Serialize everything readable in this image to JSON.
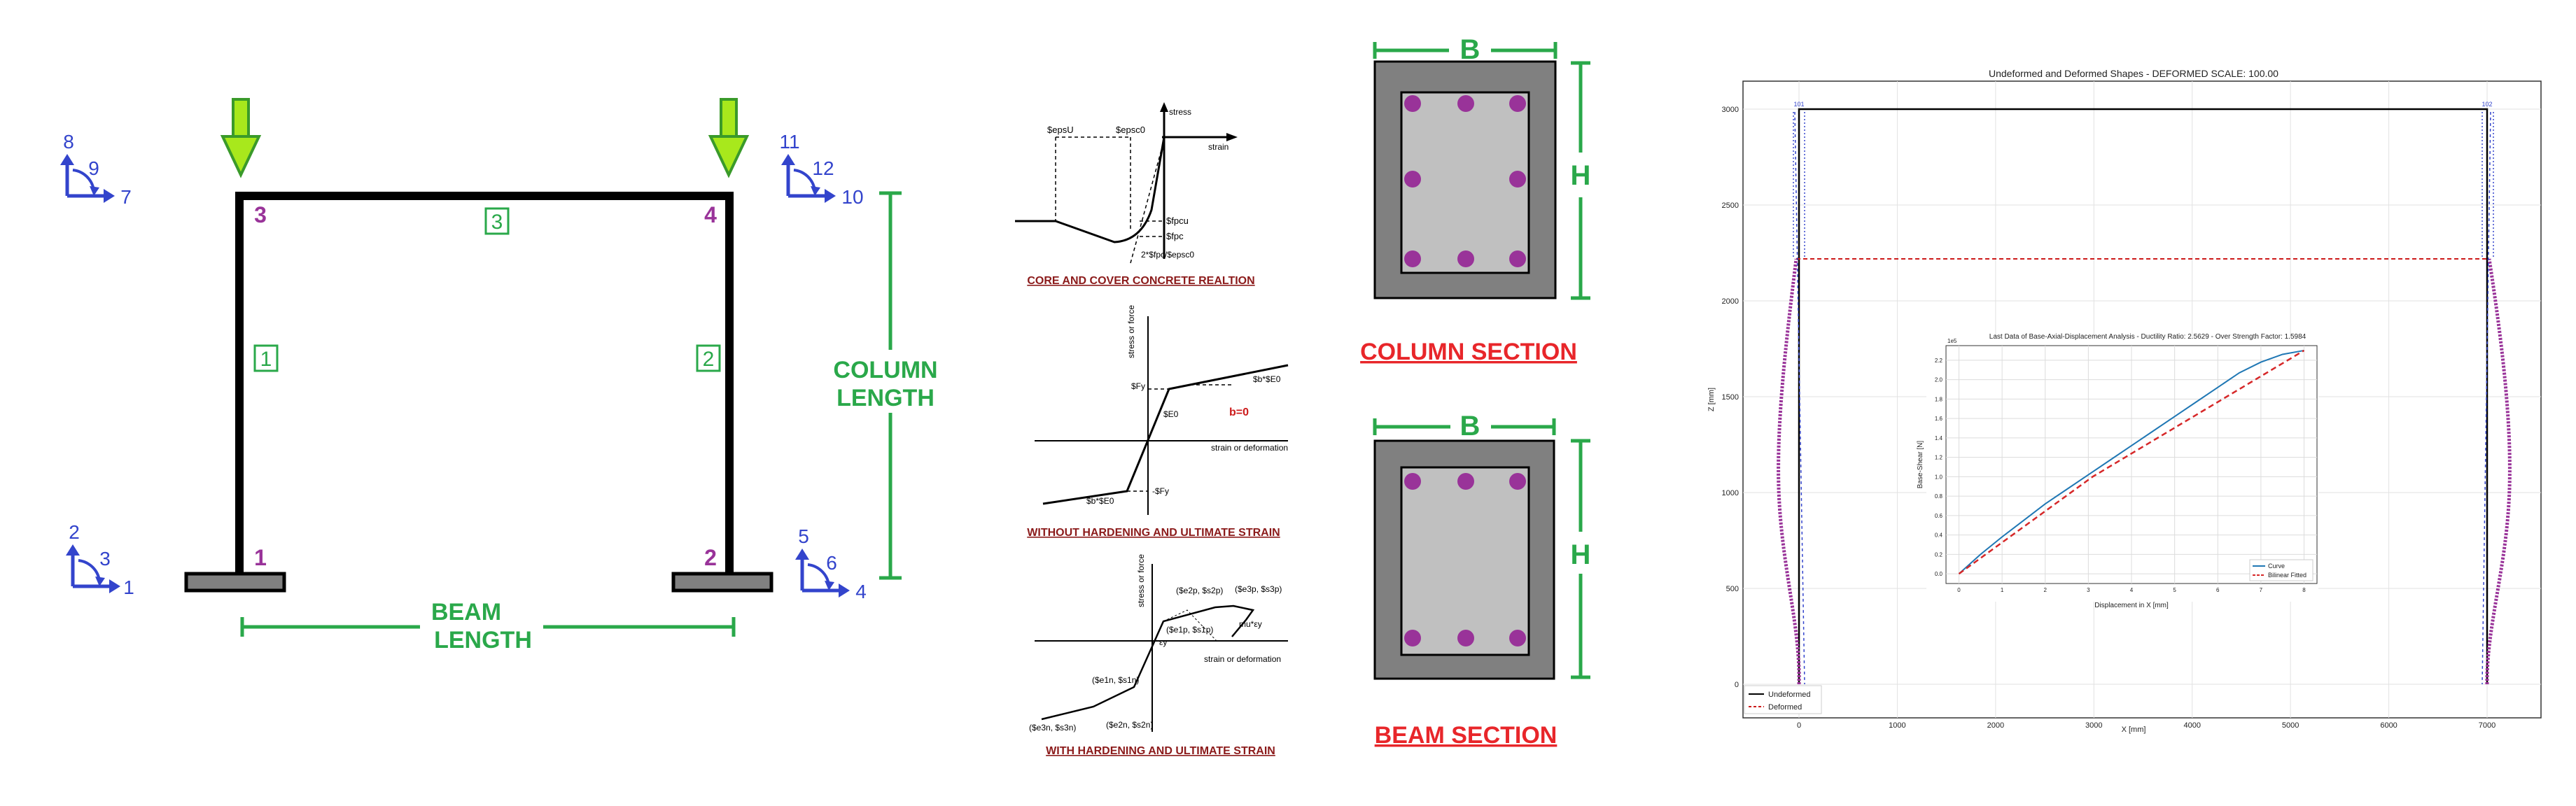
{
  "frame": {
    "node_labels": [
      "1",
      "2",
      "3",
      "4"
    ],
    "element_labels": [
      "1",
      "2",
      "3"
    ],
    "dof_groups": [
      [
        "8",
        "9",
        "7"
      ],
      [
        "11",
        "12",
        "10"
      ],
      [
        "2",
        "3",
        "1"
      ],
      [
        "5",
        "6",
        "4"
      ]
    ],
    "column_length": [
      "COLUMN",
      "LENGTH"
    ],
    "beam_length": [
      "BEAM",
      "LENGTH"
    ],
    "colors": {
      "frame": "#000000",
      "node": "#993399",
      "element": "#2aa84a",
      "dof": "#3344cc",
      "arrow": "#a8e81c"
    }
  },
  "materials": {
    "concrete": {
      "caption": "CORE AND COVER CONCRETE REALTION",
      "labels": {
        "stress": "stress",
        "strain": "strain",
        "epsU": "$epsU",
        "epsc0": "$epsc0",
        "fpcu": "$fpcu",
        "fpc": "$fpc",
        "ec": "2*$fpc/$epsc0"
      }
    },
    "steel_bilinear": {
      "caption": "WITHOUT HARDENING AND ULTIMATE STRAIN",
      "labels": {
        "y_axis": "stress or force",
        "x_axis": "strain or deformation",
        "fy_pos": "$Fy",
        "fy_neg": "-$Fy",
        "e0": "$E0",
        "bE0_pos": "$b*$E0",
        "bE0_neg": "$b*$E0",
        "b_zero": "b=0"
      }
    },
    "steel_hardening": {
      "caption": "WITH HARDENING AND ULTIMATE STRAIN",
      "labels": {
        "y_axis": "stress or force",
        "x_axis": "strain or deformation",
        "p1": "($e1p, $s1p)",
        "p2": "($e2p, $s2p)",
        "p3": "($e3p, $s3p)",
        "n1": "($e1n, $s1n)",
        "n2": "($e2n, $s2n)",
        "n3": "($e3n, $s3n)",
        "ey": "εy",
        "mu": "mu*εy"
      }
    }
  },
  "sections": {
    "column": {
      "title": "COLUMN SECTION",
      "width_label": "B",
      "height_label": "H"
    },
    "beam": {
      "title": "BEAM SECTION",
      "width_label": "B",
      "height_label": "H"
    },
    "colors": {
      "cover": "#808080",
      "core": "#c0c0c0",
      "bar": "#993399",
      "dim": "#2aa84a",
      "title": "#e8262a"
    }
  },
  "main_plot": {
    "title": "Undeformed and Deformed Shapes - DEFORMED SCALE: 100.00",
    "xlabel": "X [mm]",
    "ylabel": "Z [mm]",
    "x_ticks": [
      "0",
      "1000",
      "2000",
      "3000",
      "4000",
      "5000",
      "6000",
      "7000"
    ],
    "y_ticks": [
      "0",
      "500",
      "1000",
      "1500",
      "2000",
      "2500",
      "3000"
    ],
    "legend": [
      "Undeformed",
      "Deformed"
    ],
    "top_node_labels": [
      "101",
      "102"
    ]
  },
  "chart_data": {
    "type": "line",
    "title": "Last Data of Base-Axial-Displacement Analysis - Ductility Ratio: 2.5629 - Over Strength Factor: 1.5984",
    "xlabel": "Displacement in X [mm]",
    "ylabel": "Base-Shear [N]",
    "y_multiplier": "1e5",
    "xlim": [
      -0.3,
      8.3
    ],
    "ylim": [
      -0.1,
      2.35
    ],
    "x_ticks": [
      "0",
      "1",
      "2",
      "3",
      "4",
      "5",
      "6",
      "7",
      "8"
    ],
    "y_ticks": [
      "0.0",
      "0.2",
      "0.4",
      "0.6",
      "0.8",
      "1.0",
      "1.2",
      "1.4",
      "1.6",
      "1.8",
      "2.0",
      "2.2"
    ],
    "legend_position": "lower-right",
    "grid": true,
    "series": [
      {
        "name": "Curve",
        "color": "#1f77b4",
        "dash": "solid",
        "x": [
          0,
          0.5,
          1,
          1.5,
          2,
          2.5,
          3,
          3.5,
          4,
          4.5,
          5,
          5.5,
          6,
          6.5,
          7,
          7.5,
          8
        ],
        "y": [
          0,
          0.2,
          0.38,
          0.55,
          0.72,
          0.87,
          1.02,
          1.17,
          1.32,
          1.47,
          1.62,
          1.77,
          1.92,
          2.07,
          2.18,
          2.26,
          2.3
        ]
      },
      {
        "name": "Bilinear Fitted",
        "color": "#d62728",
        "dash": "dashed",
        "x": [
          0,
          3.1,
          8
        ],
        "y": [
          0,
          1.0,
          2.3
        ]
      }
    ]
  }
}
